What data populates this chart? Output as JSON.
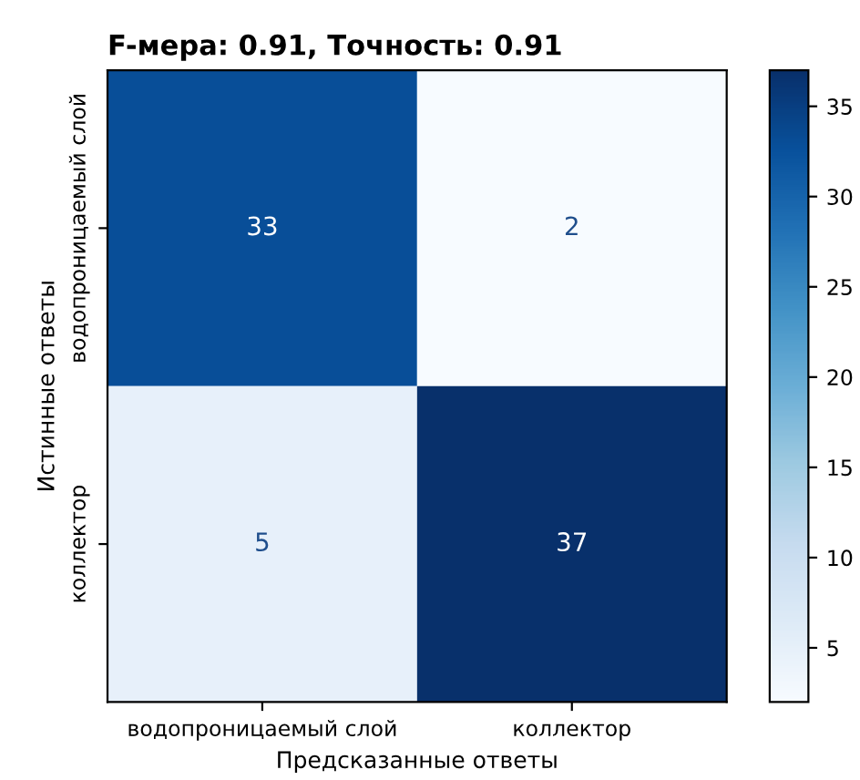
{
  "chart_data": {
    "type": "heatmap",
    "title": "F-мера: 0.91, Точность: 0.91",
    "xlabel": "Предсказанные ответы",
    "ylabel": "Истинные ответы",
    "categories": [
      "водопроницаемый слой",
      "коллектор"
    ],
    "y_categories": [
      "водопроницаемый слой",
      "коллектор"
    ],
    "cells": [
      [
        33,
        2
      ],
      [
        5,
        37
      ]
    ],
    "data_labels": true,
    "clim": [
      2,
      37
    ],
    "cticks": [
      5,
      10,
      15,
      20,
      25,
      30,
      35
    ],
    "grid": false
  }
}
